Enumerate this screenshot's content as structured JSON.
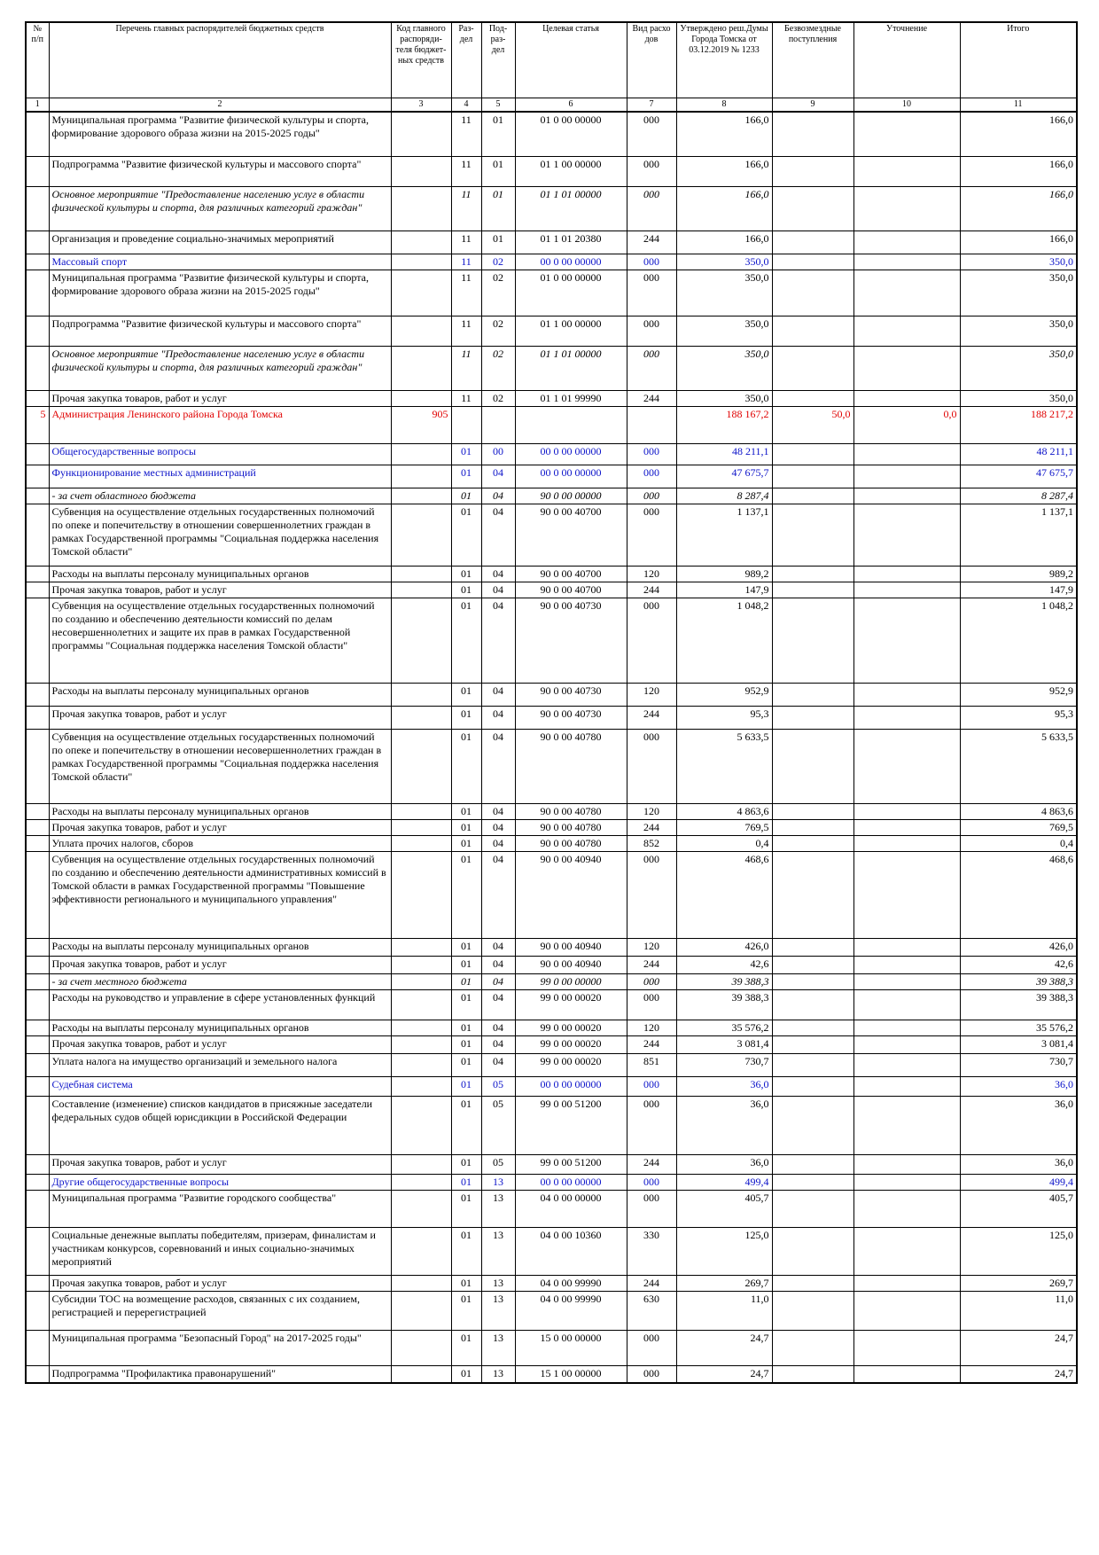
{
  "header": {
    "col1": "№ п/п",
    "col2": "Перечень главных распорядителей бюджетных средств",
    "col3": "Код главного распоряди-теля бюджет-ных средств",
    "col4": "Раз-дел",
    "col5": "Под-раз-дел",
    "col6": "Целевая статья",
    "col7": "Вид расхо дов",
    "col8": "Утверждено реш.Думы Города Томска от 03.12.2019 № 1233",
    "col9": "Безвозмездные поступления",
    "col10": "Уточнение",
    "col11": "Итого"
  },
  "column_numbers": [
    "1",
    "2",
    "3",
    "4",
    "5",
    "6",
    "7",
    "8",
    "9",
    "10",
    "11"
  ],
  "rows": [
    {
      "style": "bold",
      "h": 50,
      "num": "",
      "name": "Муниципальная программа \"Развитие физической культуры и спорта, формирование здорового образа жизни на 2015-2025 годы\"",
      "code": "",
      "razdel": "11",
      "podrazdel": "01",
      "target": "01 0 00 00000",
      "vid": "000",
      "approved": "166,0",
      "bezv": "",
      "utoch": "",
      "itogo": "166,0"
    },
    {
      "style": "bold",
      "h": 34,
      "num": "",
      "name": "Подпрограмма \"Развитие физической культуры и массового спорта\"",
      "code": "",
      "razdel": "11",
      "podrazdel": "01",
      "target": "01 1 00 00000",
      "vid": "000",
      "approved": "166,0",
      "bezv": "",
      "utoch": "",
      "itogo": "166,0"
    },
    {
      "style": "bi",
      "h": 50,
      "num": "",
      "name": "Основное мероприятие \"Предоставление населению услуг в области физической культуры и спорта, для различных категорий граждан\"",
      "code": "",
      "razdel": "11",
      "podrazdel": "01",
      "target": "01 1 01 00000",
      "vid": "000",
      "approved": "166,0",
      "bezv": "",
      "utoch": "",
      "itogo": "166,0"
    },
    {
      "style": "ind1",
      "h": 26,
      "num": "",
      "name": "Организация и проведение социально-значимых мероприятий",
      "code": "",
      "razdel": "11",
      "podrazdel": "01",
      "target": "01 1 01 20380",
      "vid": "244",
      "approved": "166,0",
      "bezv": "",
      "utoch": "",
      "itogo": "166,0"
    },
    {
      "style": "blue",
      "h": 16,
      "num": "",
      "name": "Массовый спорт",
      "code": "",
      "razdel": "11",
      "podrazdel": "02",
      "target": "00 0 00 00000",
      "vid": "000",
      "approved": "350,0",
      "bezv": "",
      "utoch": "",
      "itogo": "350,0"
    },
    {
      "style": "bold",
      "h": 52,
      "num": "",
      "name": "Муниципальная программа \"Развитие физической культуры и спорта, формирование здорового образа жизни на 2015-2025 годы\"",
      "code": "",
      "razdel": "11",
      "podrazdel": "02",
      "target": "01 0 00 00000",
      "vid": "000",
      "approved": "350,0",
      "bezv": "",
      "utoch": "",
      "itogo": "350,0"
    },
    {
      "style": "bold",
      "h": 34,
      "num": "",
      "name": "Подпрограмма \"Развитие физической культуры и массового спорта\"",
      "code": "",
      "razdel": "11",
      "podrazdel": "02",
      "target": "01 1 00 00000",
      "vid": "000",
      "approved": "350,0",
      "bezv": "",
      "utoch": "",
      "itogo": "350,0"
    },
    {
      "style": "bi",
      "h": 50,
      "num": "",
      "name": "Основное мероприятие \"Предоставление населению услуг в области физической культуры и спорта, для различных категорий граждан\"",
      "code": "",
      "razdel": "11",
      "podrazdel": "02",
      "target": "01 1 01 00000",
      "vid": "000",
      "approved": "350,0",
      "bezv": "",
      "utoch": "",
      "itogo": "350,0"
    },
    {
      "style": "ind2",
      "h": 16,
      "num": "",
      "name": "Прочая закупка товаров, работ и услуг",
      "code": "",
      "razdel": "11",
      "podrazdel": "02",
      "target": "01 1 01 99990",
      "vid": "244",
      "approved": "350,0",
      "bezv": "",
      "utoch": "",
      "itogo": "350,0"
    },
    {
      "style": "red",
      "h": 42,
      "num": "5",
      "name": "Администрация Ленинского района Города Томска",
      "code": "905",
      "razdel": "",
      "podrazdel": "",
      "target": "",
      "vid": "",
      "approved": "188 167,2",
      "bezv": "50,0",
      "utoch": "0,0",
      "itogo": "188 217,2"
    },
    {
      "style": "blue",
      "h": 24,
      "num": "",
      "name": "Общегосударственные вопросы",
      "code": "",
      "razdel": "01",
      "podrazdel": "00",
      "target": "00 0 00 00000",
      "vid": "000",
      "approved": "48 211,1",
      "bezv": "",
      "utoch": "",
      "itogo": "48 211,1"
    },
    {
      "style": "blue",
      "h": 26,
      "num": "",
      "name": "Функционирование местных администраций",
      "code": "",
      "razdel": "01",
      "podrazdel": "04",
      "target": "00 0 00 00000",
      "vid": "000",
      "approved": "47 675,7",
      "bezv": "",
      "utoch": "",
      "itogo": "47 675,7"
    },
    {
      "style": "ital ind1",
      "h": 16,
      "num": "",
      "name": "- за счет областного бюджета",
      "code": "",
      "razdel": "01",
      "podrazdel": "04",
      "target": "90 0 00 00000",
      "vid": "000",
      "approved": "8 287,4",
      "bezv": "",
      "utoch": "",
      "itogo": "8 287,4"
    },
    {
      "style": "",
      "h": 70,
      "num": "",
      "name": "Субвенция на осуществление отдельных государственных полномочий по опеке и попечительству в отношении совершеннолетних граждан в рамках Государственной программы \"Социальная поддержка населения Томской области\"",
      "code": "",
      "razdel": "01",
      "podrazdel": "04",
      "target": "90 0 00 40700",
      "vid": "000",
      "approved": "1 137,1",
      "bezv": "",
      "utoch": "",
      "itogo": "1 137,1"
    },
    {
      "style": "ind2",
      "h": 16,
      "num": "",
      "name": "Расходы на выплаты персоналу муниципальных органов",
      "code": "",
      "razdel": "01",
      "podrazdel": "04",
      "target": "90 0 00 40700",
      "vid": "120",
      "approved": "989,2",
      "bezv": "",
      "utoch": "",
      "itogo": "989,2"
    },
    {
      "style": "ind2",
      "h": 16,
      "num": "",
      "name": "Прочая закупка товаров, работ и услуг",
      "code": "",
      "razdel": "01",
      "podrazdel": "04",
      "target": "90 0 00 40700",
      "vid": "244",
      "approved": "147,9",
      "bezv": "",
      "utoch": "",
      "itogo": "147,9"
    },
    {
      "style": "ind1",
      "h": 96,
      "num": "",
      "name": "Субвенция на осуществление отдельных государственных полномочий по созданию и обеспечению деятельности комиссий по делам несовершеннолетних и защите их прав в рамках Государственной программы \"Социальная поддержка населения Томской области\"",
      "code": "",
      "razdel": "01",
      "podrazdel": "04",
      "target": "90 0 00 40730",
      "vid": "000",
      "approved": "1 048,2",
      "bezv": "",
      "utoch": "",
      "itogo": "1 048,2"
    },
    {
      "style": "ind2",
      "h": 26,
      "num": "",
      "name": "Расходы на выплаты персоналу муниципальных органов",
      "code": "",
      "razdel": "01",
      "podrazdel": "04",
      "target": "90 0 00 40730",
      "vid": "120",
      "approved": "952,9",
      "bezv": "",
      "utoch": "",
      "itogo": "952,9"
    },
    {
      "style": "ind2",
      "h": 26,
      "num": "",
      "name": "Прочая закупка товаров, работ и услуг",
      "code": "",
      "razdel": "01",
      "podrazdel": "04",
      "target": "90 0 00 40730",
      "vid": "244",
      "approved": "95,3",
      "bezv": "",
      "utoch": "",
      "itogo": "95,3"
    },
    {
      "style": "",
      "h": 84,
      "num": "",
      "name": "Субвенция на осуществление отдельных государственных полномочий по опеке и попечительству в отношении несовершеннолетних граждан в рамках Государственной программы \"Социальная поддержка населения Томской области\"",
      "code": "",
      "razdel": "01",
      "podrazdel": "04",
      "target": "90 0 00 40780",
      "vid": "000",
      "approved": "5 633,5",
      "bezv": "",
      "utoch": "",
      "itogo": "5 633,5"
    },
    {
      "style": "ind2",
      "h": 16,
      "num": "",
      "name": "Расходы на выплаты персоналу муниципальных органов",
      "code": "",
      "razdel": "01",
      "podrazdel": "04",
      "target": "90 0 00 40780",
      "vid": "120",
      "approved": "4 863,6",
      "bezv": "",
      "utoch": "",
      "itogo": "4 863,6"
    },
    {
      "style": "ind2",
      "h": 16,
      "num": "",
      "name": "Прочая закупка товаров, работ и услуг",
      "code": "",
      "razdel": "01",
      "podrazdel": "04",
      "target": "90 0 00 40780",
      "vid": "244",
      "approved": "769,5",
      "bezv": "",
      "utoch": "",
      "itogo": "769,5"
    },
    {
      "style": "ind2",
      "h": 16,
      "num": "",
      "name": "Уплата прочих налогов, сборов",
      "code": "",
      "razdel": "01",
      "podrazdel": "04",
      "target": "90 0 00 40780",
      "vid": "852",
      "approved": "0,4",
      "bezv": "",
      "utoch": "",
      "itogo": "0,4"
    },
    {
      "style": "ind1",
      "h": 98,
      "num": "",
      "name": "Субвенция на осуществление отдельных государственных полномочий по созданию и обеспечению деятельности административных комиссий в Томской области в рамках Государственной программы \"Повышение эффективности регионального и муниципального управления\"",
      "code": "",
      "razdel": "01",
      "podrazdel": "04",
      "target": "90 0 00 40940",
      "vid": "000",
      "approved": "468,6",
      "bezv": "",
      "utoch": "",
      "itogo": "468,6"
    },
    {
      "style": "ind2",
      "h": 20,
      "num": "",
      "name": "Расходы на выплаты персоналу муниципальных органов",
      "code": "",
      "razdel": "01",
      "podrazdel": "04",
      "target": "90 0 00 40940",
      "vid": "120",
      "approved": "426,0",
      "bezv": "",
      "utoch": "",
      "itogo": "426,0"
    },
    {
      "style": "ind2",
      "h": 20,
      "num": "",
      "name": "Прочая закупка товаров, работ и услуг",
      "code": "",
      "razdel": "01",
      "podrazdel": "04",
      "target": "90 0 00 40940",
      "vid": "244",
      "approved": "42,6",
      "bezv": "",
      "utoch": "",
      "itogo": "42,6"
    },
    {
      "style": "ital ind1",
      "h": 16,
      "num": "",
      "name": "- за счет местного бюджета",
      "code": "",
      "razdel": "01",
      "podrazdel": "04",
      "target": "99 0 00 00000",
      "vid": "000",
      "approved": "39 388,3",
      "bezv": "",
      "utoch": "",
      "itogo": "39 388,3"
    },
    {
      "style": "ind1",
      "h": 34,
      "num": "",
      "name": "Расходы на руководство и управление в сфере установленных функций",
      "code": "",
      "razdel": "01",
      "podrazdel": "04",
      "target": "99 0 00 00020",
      "vid": "000",
      "approved": "39 388,3",
      "bezv": "",
      "utoch": "",
      "itogo": "39 388,3"
    },
    {
      "style": "ind2",
      "h": 16,
      "num": "",
      "name": "Расходы на выплаты персоналу муниципальных органов",
      "code": "",
      "razdel": "01",
      "podrazdel": "04",
      "target": "99 0 00 00020",
      "vid": "120",
      "approved": "35 576,2",
      "bezv": "",
      "utoch": "",
      "itogo": "35 576,2"
    },
    {
      "style": "ind2",
      "h": 20,
      "num": "",
      "name": "Прочая закупка товаров, работ и услуг",
      "code": "",
      "razdel": "01",
      "podrazdel": "04",
      "target": "99 0 00 00020",
      "vid": "244",
      "approved": "3 081,4",
      "bezv": "",
      "utoch": "",
      "itogo": "3 081,4"
    },
    {
      "style": "ind2",
      "h": 26,
      "num": "",
      "name": "Уплата налога на имущество организаций и земельного налога",
      "code": "",
      "razdel": "01",
      "podrazdel": "04",
      "target": "99 0 00 00020",
      "vid": "851",
      "approved": "730,7",
      "bezv": "",
      "utoch": "",
      "itogo": "730,7"
    },
    {
      "style": "blue",
      "h": 22,
      "num": "",
      "name": "Судебная система",
      "code": "",
      "razdel": "01",
      "podrazdel": "05",
      "target": "00 0 00 00000",
      "vid": "000",
      "approved": "36,0",
      "bezv": "",
      "utoch": "",
      "itogo": "36,0"
    },
    {
      "style": "",
      "h": 66,
      "num": "",
      "name": "Составление (изменение) списков кандидатов в присяжные заседатели федеральных судов общей юрисдикции в Российской Федерации",
      "code": "",
      "razdel": "01",
      "podrazdel": "05",
      "target": "99 0 00 51200",
      "vid": "000",
      "approved": "36,0",
      "bezv": "",
      "utoch": "",
      "itogo": "36,0"
    },
    {
      "style": "ind1",
      "h": 22,
      "num": "",
      "name": "Прочая закупка товаров, работ и услуг",
      "code": "",
      "razdel": "01",
      "podrazdel": "05",
      "target": "99 0 00 51200",
      "vid": "244",
      "approved": "36,0",
      "bezv": "",
      "utoch": "",
      "itogo": "36,0"
    },
    {
      "style": "blue",
      "h": 16,
      "num": "",
      "name": "Другие общегосударственные вопросы",
      "code": "",
      "razdel": "01",
      "podrazdel": "13",
      "target": "00 0 00 00000",
      "vid": "000",
      "approved": "499,4",
      "bezv": "",
      "utoch": "",
      "itogo": "499,4"
    },
    {
      "style": "bold",
      "h": 42,
      "num": "",
      "name": "Муниципальная программа \"Развитие городского сообщества\"",
      "code": "",
      "razdel": "01",
      "podrazdel": "13",
      "target": "04 0 00 00000",
      "vid": "000",
      "approved": "405,7",
      "bezv": "",
      "utoch": "",
      "itogo": "405,7"
    },
    {
      "style": "",
      "h": 54,
      "num": "",
      "name": "Социальные денежные выплаты победителям, призерам, финалистам и участникам конкурсов, соревнований и иных социально-значимых мероприятий",
      "code": "",
      "razdel": "01",
      "podrazdel": "13",
      "target": "04 0 00 10360",
      "vid": "330",
      "approved": "125,0",
      "bezv": "",
      "utoch": "",
      "itogo": "125,0"
    },
    {
      "style": "",
      "h": 16,
      "num": "",
      "name": "Прочая закупка товаров, работ и услуг",
      "code": "",
      "razdel": "01",
      "podrazdel": "13",
      "target": "04 0 00 99990",
      "vid": "244",
      "approved": "269,7",
      "bezv": "",
      "utoch": "",
      "itogo": "269,7"
    },
    {
      "style": "",
      "h": 44,
      "num": "",
      "name": "Субсидии ТОС на возмещение расходов, связанных с их созданием, регистрацией и перерегистрацией",
      "code": "",
      "razdel": "01",
      "podrazdel": "13",
      "target": "04 0 00 99990",
      "vid": "630",
      "approved": "11,0",
      "bezv": "",
      "utoch": "",
      "itogo": "11,0"
    },
    {
      "style": "bold",
      "h": 40,
      "num": "",
      "name": "Муниципальная программа \"Безопасный Город\" на 2017-2025 годы\"",
      "code": "",
      "razdel": "01",
      "podrazdel": "13",
      "target": "15 0 00 00000",
      "vid": "000",
      "approved": "24,7",
      "bezv": "",
      "utoch": "",
      "itogo": "24,7"
    },
    {
      "style": "bold",
      "h": 20,
      "num": "",
      "name": "Подпрограмма \"Профилактика правонарушений\"",
      "code": "",
      "razdel": "01",
      "podrazdel": "13",
      "target": "15 1 00 00000",
      "vid": "000",
      "approved": "24,7",
      "bezv": "",
      "utoch": "",
      "itogo": "24,7"
    }
  ]
}
